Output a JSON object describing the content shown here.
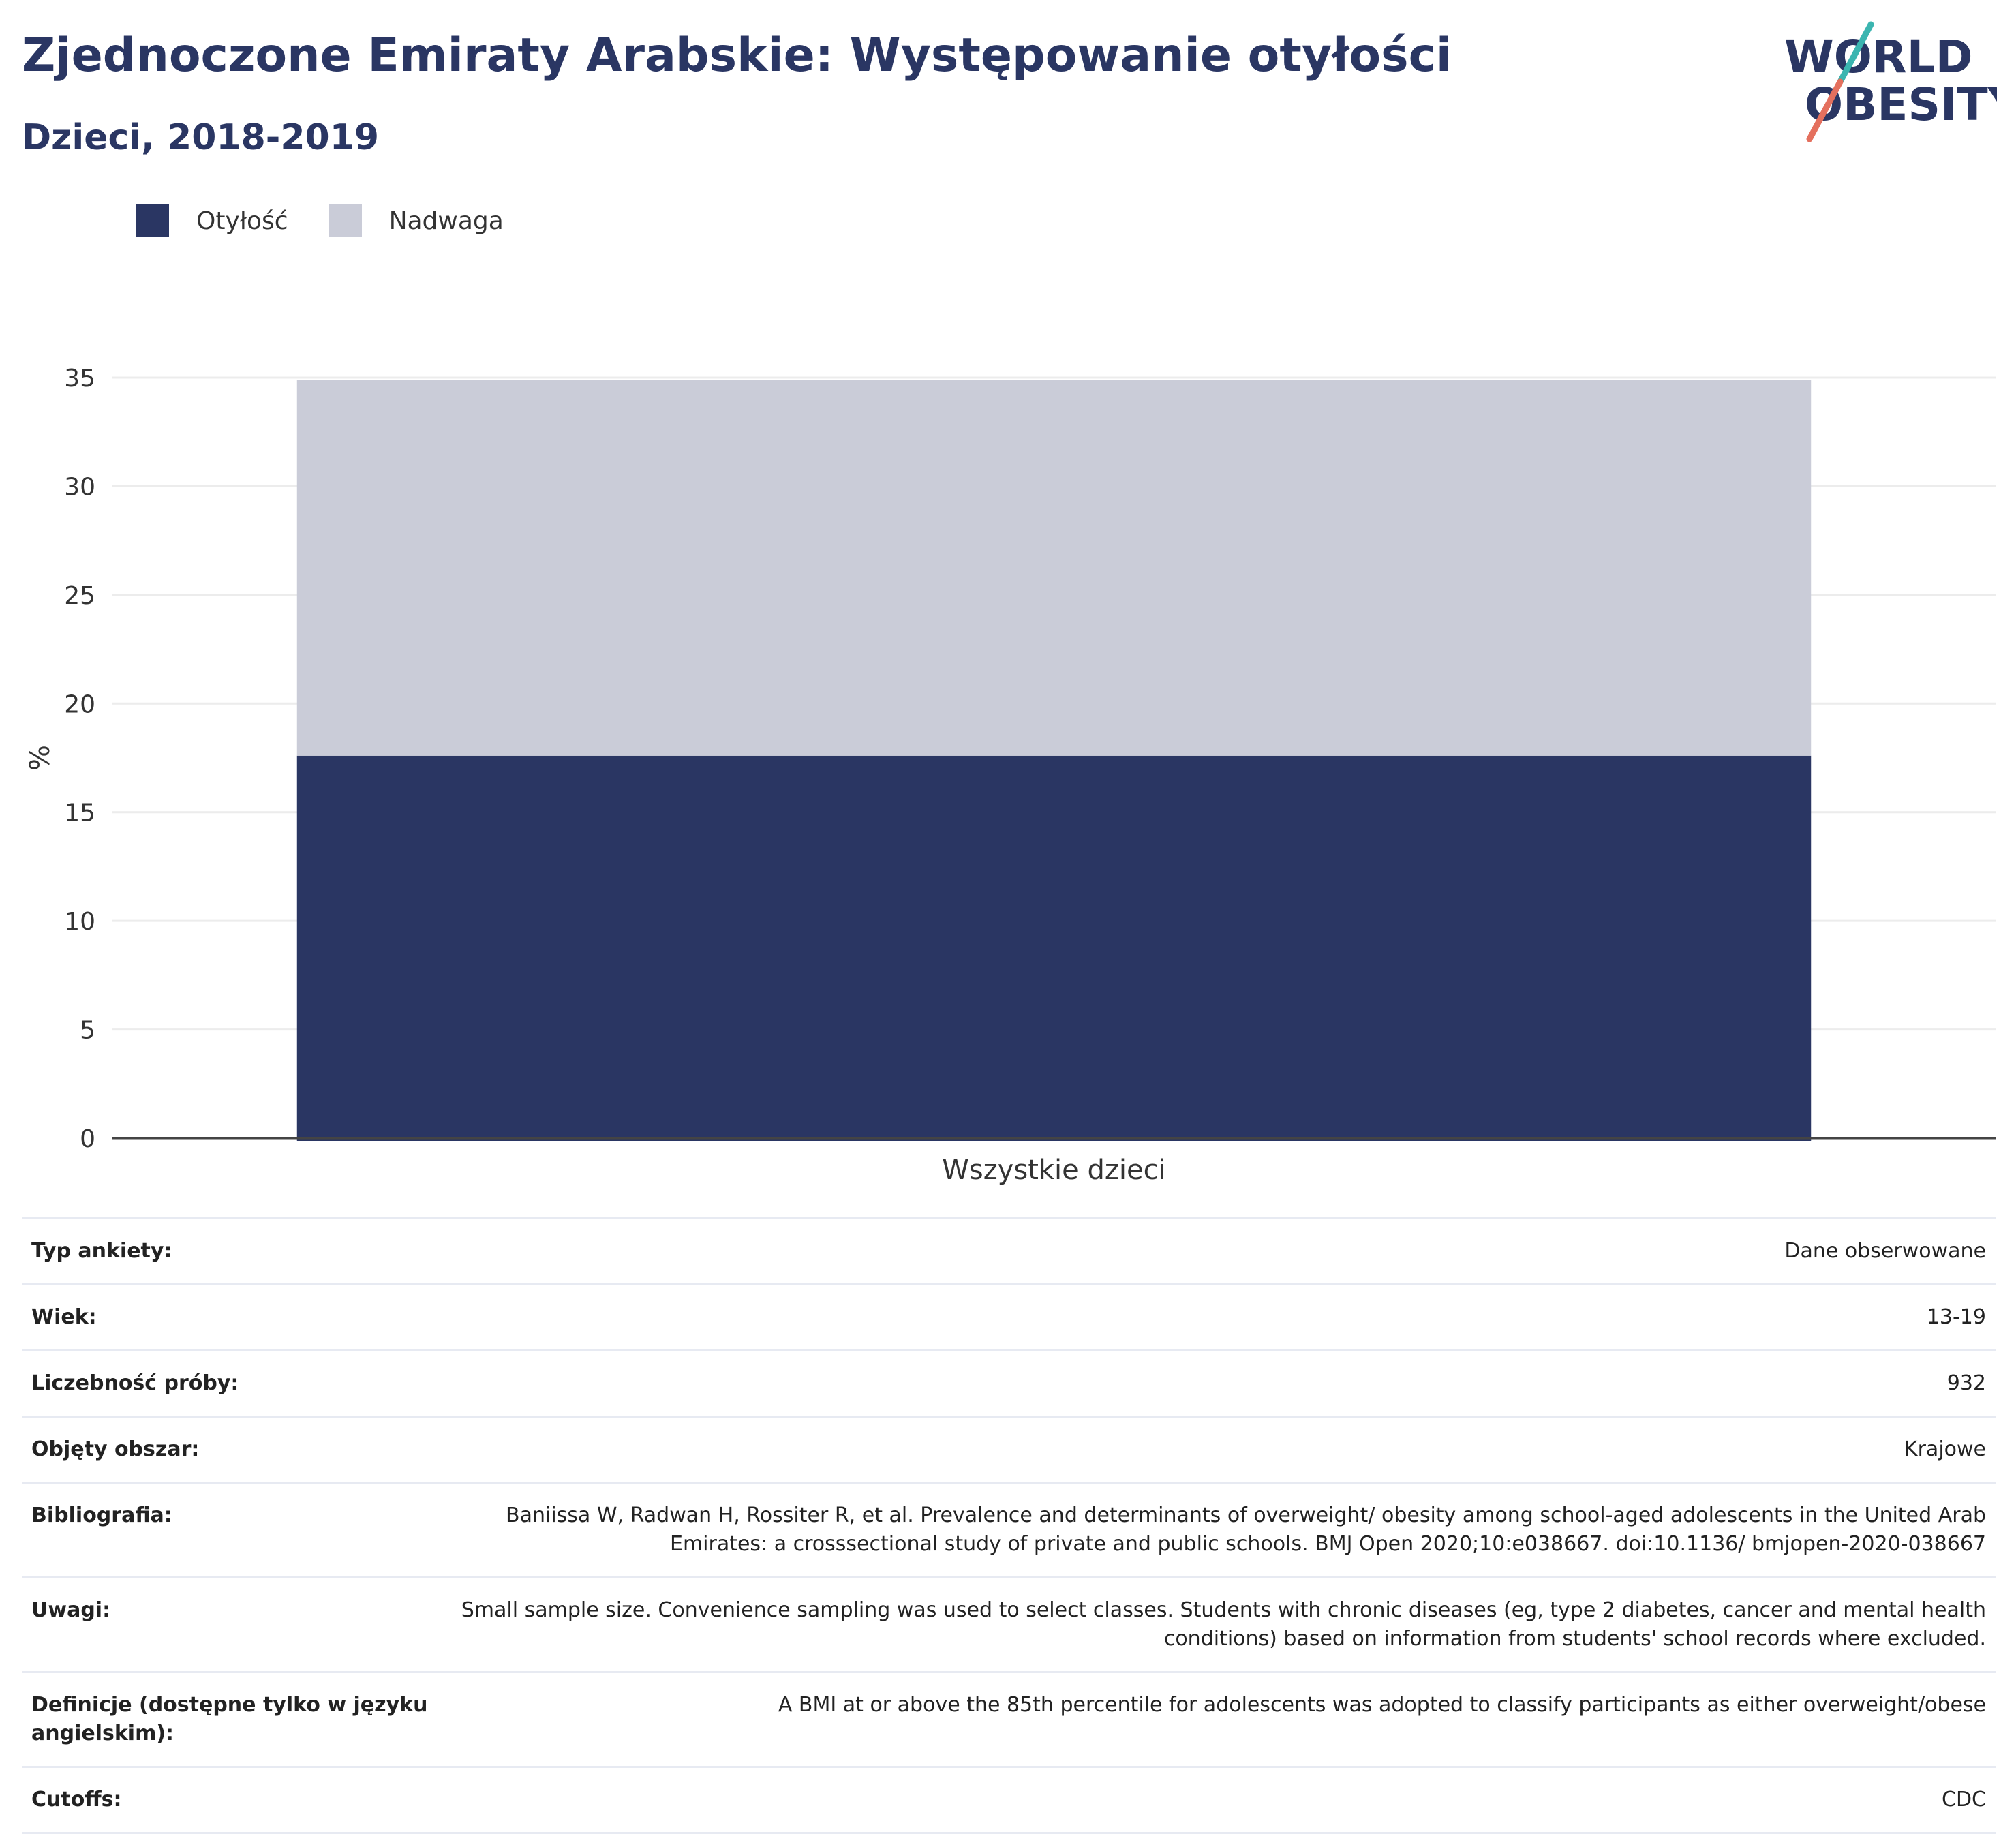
{
  "header": {
    "title": "Zjednoczone Emiraty Arabskie: Występowanie otyłości",
    "subtitle": "Dzieci, 2018-2019",
    "logo_line1": "WORLD",
    "logo_line2": "OBESITY"
  },
  "colors": {
    "obesity": "#2a3663",
    "overweight": "#caccd8",
    "logo_teal": "#3bb5b0",
    "logo_coral": "#e4705e"
  },
  "chart_data": {
    "type": "bar",
    "stacked": true,
    "categories": [
      "Wszystkie dzieci"
    ],
    "series": [
      {
        "name": "Otyłość",
        "values": [
          17.6
        ]
      },
      {
        "name": "Nadwaga",
        "values": [
          17.3
        ]
      }
    ],
    "ylabel": "%",
    "xlabel": "",
    "ylim": [
      0,
      35
    ],
    "yticks": [
      0,
      5,
      10,
      15,
      20,
      25,
      30,
      35
    ],
    "grid": true,
    "legend": "top-left"
  },
  "info": {
    "rows": [
      {
        "label": "Typ ankiety:",
        "value": "Dane obserwowane"
      },
      {
        "label": "Wiek:",
        "value": "13-19"
      },
      {
        "label": "Liczebność próby:",
        "value": "932"
      },
      {
        "label": "Objęty obszar:",
        "value": "Krajowe"
      },
      {
        "label": "Bibliografia:",
        "value": "Baniissa W, Radwan H, Rossiter R, et al. Prevalence and determinants of overweight/ obesity among school-aged adolescents in the United Arab Emirates: a crosssectional study of private and public schools. BMJ Open 2020;10:e038667. doi:10.1136/ bmjopen-2020-038667"
      },
      {
        "label": "Uwagi:",
        "value": "Small sample size. Convenience sampling was used to select classes. Students with chronic diseases (eg, type 2 diabetes, cancer and mental health conditions) based on information from students' school records where excluded."
      },
      {
        "label": "Definicje (dostępne tylko w języku angielskim):",
        "value": "A BMI at or above the 85th percentile for adolescents was adopted to classify participants as either overweight/obese"
      },
      {
        "label": "Cutoffs:",
        "value": "CDC"
      }
    ]
  }
}
